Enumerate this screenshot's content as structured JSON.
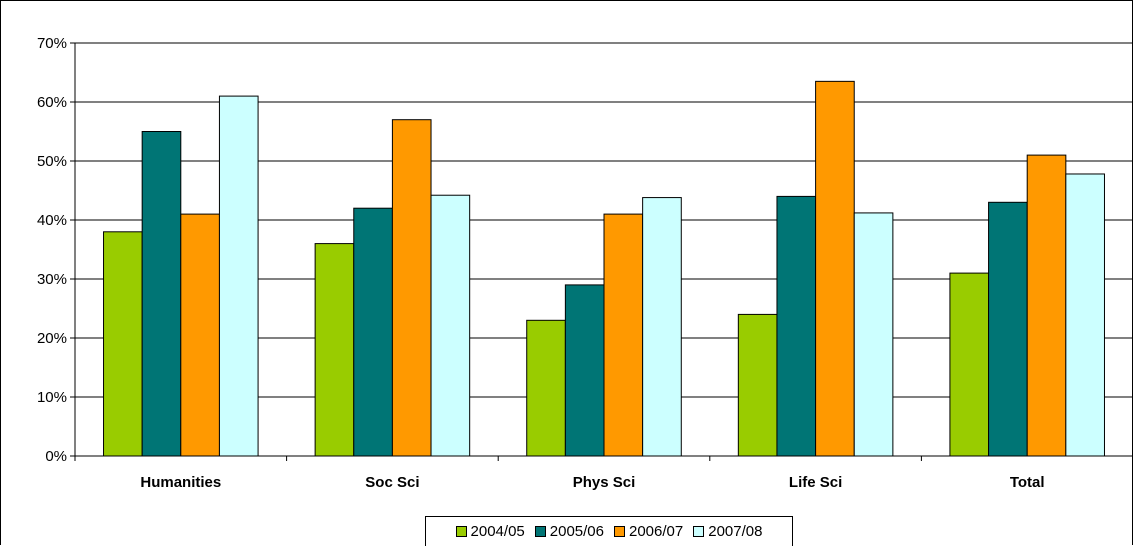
{
  "chart_data": {
    "type": "bar",
    "title": "",
    "xlabel": "",
    "ylabel": "",
    "ylim": [
      0,
      70
    ],
    "y_unit": "%",
    "y_ticks": [
      "0%",
      "10%",
      "20%",
      "30%",
      "40%",
      "50%",
      "60%",
      "70%"
    ],
    "grid": true,
    "legend_position": "bottom",
    "categories": [
      "Humanities",
      "Soc Sci",
      "Phys Sci",
      "Life Sci",
      "Total"
    ],
    "series": [
      {
        "name": "2004/05",
        "color": "#99CC00",
        "values": [
          38,
          36,
          23,
          24,
          31
        ]
      },
      {
        "name": "2005/06",
        "color": "#007575",
        "values": [
          55,
          42,
          29,
          44,
          43
        ]
      },
      {
        "name": "2006/07",
        "color": "#FF9900",
        "values": [
          41,
          57,
          41,
          63.5,
          51
        ]
      },
      {
        "name": "2007/08",
        "color": "#CCFFFF",
        "values": [
          61,
          44.2,
          43.8,
          41.2,
          47.8
        ]
      }
    ]
  }
}
